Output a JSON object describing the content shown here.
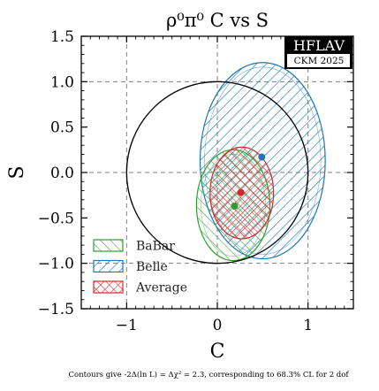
{
  "chart_data": {
    "type": "scatter",
    "title": "ρ⁰π⁰ C vs S",
    "xlabel": "C",
    "ylabel": "S",
    "xlim": [
      -1.5,
      1.5
    ],
    "ylim": [
      -1.5,
      1.5
    ],
    "xticks": [
      -1,
      0,
      1
    ],
    "xtick_labels": [
      "−1",
      "0",
      "1"
    ],
    "yticks": [
      -1.5,
      -1.0,
      -0.5,
      0.0,
      0.5,
      1.0,
      1.5
    ],
    "ytick_labels": [
      "−1.5",
      "−1.0",
      "−0.5",
      "0.0",
      "0.5",
      "1.0",
      "1.5"
    ],
    "grid": "dashed at C = −1, 0, 1 and S = −1, 0, 1",
    "boundary": {
      "shape": "unit circle",
      "equation": "C² + S² = 1"
    },
    "legend_position": "lower-left",
    "series": [
      {
        "name": "BaBar",
        "color": "#2ca02c",
        "hatch": "back-diagonal",
        "center": {
          "C": 0.19,
          "S": -0.37
        },
        "ellipse": {
          "x_range": [
            -0.23,
            0.58
          ],
          "y_range": [
            -0.97,
            0.25
          ]
        }
      },
      {
        "name": "Belle",
        "color": "#1f77b4",
        "hatch": "diagonal",
        "center": {
          "C": 0.49,
          "S": 0.17
        },
        "ellipse": {
          "x_range": [
            -0.19,
            1.19
          ],
          "y_range": [
            -0.95,
            1.21
          ]
        }
      },
      {
        "name": "Average",
        "color": "#d62728",
        "hatch": "cross",
        "center": {
          "C": 0.26,
          "S": -0.22
        },
        "ellipse": {
          "x_range": [
            -0.08,
            0.62
          ],
          "y_range": [
            -0.73,
            0.28
          ]
        }
      }
    ],
    "badge": {
      "main": "HFLAV",
      "sub": "CKM 2025"
    },
    "footnote": "Contours give -2Δ(ln L) = Δχ² = 2.3, corresponding to 68.3% CL for 2 dof"
  }
}
